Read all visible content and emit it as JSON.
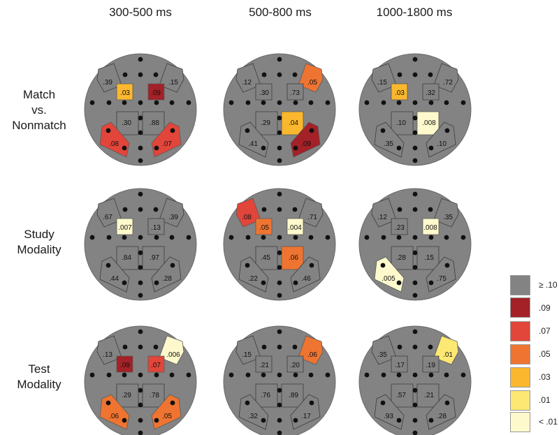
{
  "columns": [
    "300-500 ms",
    "500-800 ms",
    "1000-1800 ms"
  ],
  "rows": [
    {
      "label": [
        "Match",
        "vs.",
        "Nonmatch"
      ]
    },
    {
      "label": [
        "Study",
        "Modality"
      ]
    },
    {
      "label": [
        "Test",
        "Modality"
      ]
    }
  ],
  "colors": {
    "head": "#838383",
    "ns": "#838383",
    "p09": "#a32127",
    "p07": "#e2453a",
    "p05": "#ef7431",
    "p03": "#fbb72d",
    "p01": "#fce873",
    "plt01": "#fdf9cc"
  },
  "legend": [
    {
      "label": "≥ .10",
      "color": "#838383"
    },
    {
      "label": ".09",
      "color": "#a32127"
    },
    {
      "label": ".07",
      "color": "#e2453a"
    },
    {
      "label": ".05",
      "color": "#ef7431"
    },
    {
      "label": ".03",
      "color": "#fbb72d"
    },
    {
      "label": ".01",
      "color": "#fce873"
    },
    {
      "label": "< .01",
      "color": "#fdf9cc"
    }
  ],
  "maps": [
    [
      {
        "LA": ".39",
        "LC": ".03",
        "RC": ".09",
        "RA": ".15",
        "LP": ".30",
        "RP": ".88",
        "LPO": ".08",
        "RPO": ".07"
      },
      {
        "LA": ".12",
        "LC": ".30",
        "RC": ".73",
        "RA": ".05",
        "LP": ".29",
        "RP": ".04",
        "LPO": ".41",
        "RPO": ".09"
      },
      {
        "LA": ".15",
        "LC": ".03",
        "RC": ".32",
        "RA": ".72",
        "LP": ".10",
        "RP": ".008",
        "LPO": ".35",
        "RPO": ".10"
      }
    ],
    [
      {
        "LA": ".67",
        "LC": ".007",
        "RC": ".13",
        "RA": ".39",
        "LP": ".84",
        "RP": ".97",
        "LPO": ".44",
        "RPO": ".28"
      },
      {
        "LA": ".08",
        "LC": ".05",
        "RC": ".004",
        "RA": ".71",
        "LP": ".45",
        "RP": ".06",
        "LPO": ".22",
        "RPO": ".46"
      },
      {
        "LA": ".12",
        "LC": ".23",
        "RC": ".008",
        "RA": ".35",
        "LP": ".28",
        "RP": ".15",
        "LPO": ".005",
        "RPO": ".75"
      }
    ],
    [
      {
        "LA": ".13",
        "LC": ".09",
        "RC": ".07",
        "RA": ".006",
        "LP": ".29",
        "RP": ".78",
        "LPO": ".06",
        "RPO": ".05"
      },
      {
        "LA": ".15",
        "LC": ".21",
        "RC": ".20",
        "RA": ".06",
        "LP": ".76",
        "RP": ".89",
        "LPO": ".32",
        "RPO": ".17"
      },
      {
        "LA": ".35",
        "LC": ".17",
        "RC": ".19",
        "RA": ".01",
        "LP": ".57",
        "RP": ".21",
        "LPO": ".93",
        "RPO": ".28"
      }
    ]
  ]
}
